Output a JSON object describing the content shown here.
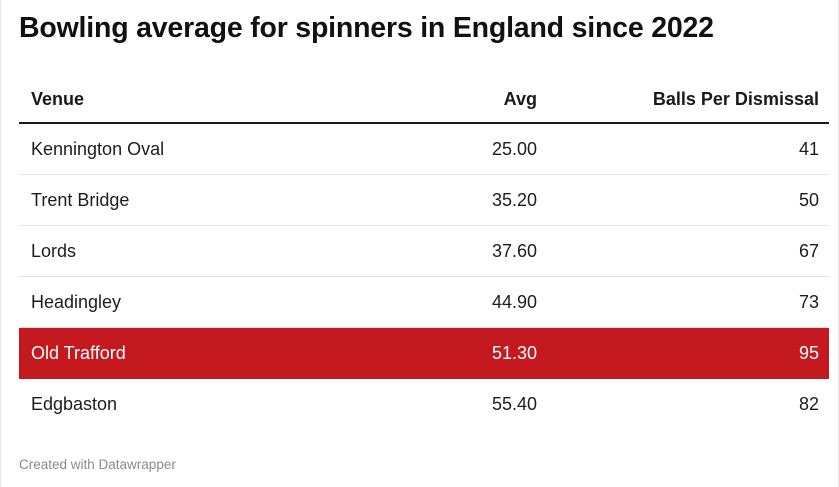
{
  "title": "Bowling average for spinners in England since 2022",
  "footer": "Created with Datawrapper",
  "colors": {
    "highlight": "#c41a1f",
    "text": "#1d1d1d",
    "footer": "#8a8a8a"
  },
  "chart_data": {
    "type": "table",
    "title": "Bowling average for spinners in England since 2022",
    "columns": [
      "Venue",
      "Avg",
      "Balls Per Dismissal"
    ],
    "highlighted_row": "Old Trafford",
    "rows": [
      {
        "venue": "Kennington Oval",
        "avg": "25.00",
        "bpd": "41"
      },
      {
        "venue": "Trent Bridge",
        "avg": "35.20",
        "bpd": "50"
      },
      {
        "venue": "Lords",
        "avg": "37.60",
        "bpd": "67"
      },
      {
        "venue": "Headingley",
        "avg": "44.90",
        "bpd": "73"
      },
      {
        "venue": "Old Trafford",
        "avg": "51.30",
        "bpd": "95"
      },
      {
        "venue": "Edgbaston",
        "avg": "55.40",
        "bpd": "82"
      }
    ]
  }
}
